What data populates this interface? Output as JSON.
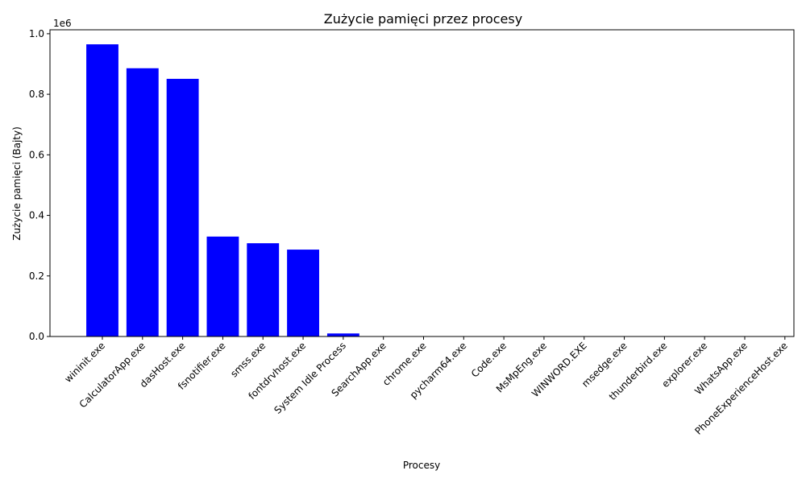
{
  "chart_data": {
    "type": "bar",
    "title": "Zużycie pamięci przez procesy",
    "x_label": "Procesy",
    "y_label": "Zużycie pamięci (Bajty)",
    "y_offset_text": "1e6",
    "categories": [
      "wininit.exe",
      "CalculatorApp.exe",
      "dasHost.exe",
      "fsnotifier.exe",
      "smss.exe",
      "fontdrvhost.exe",
      "System Idle Process",
      "SearchApp.exe",
      "chrome.exe",
      "pycharm64.exe",
      "Code.exe",
      "MsMpEng.exe",
      "WINWORD.EXE",
      "msedge.exe",
      "thunderbird.exe",
      "explorer.exe",
      "WhatsApp.exe",
      "PhoneExperienceHost.exe"
    ],
    "values": [
      965000,
      886000,
      851000,
      330000,
      308000,
      287000,
      10000,
      0,
      0,
      0,
      0,
      0,
      0,
      0,
      0,
      0,
      0,
      0
    ],
    "color": "#0000ff",
    "ylim": [
      0,
      1013000
    ],
    "yticks": [
      {
        "value": 0,
        "label": "0.0"
      },
      {
        "value": 200000,
        "label": "0.2"
      },
      {
        "value": 400000,
        "label": "0.4"
      },
      {
        "value": 600000,
        "label": "0.6"
      },
      {
        "value": 800000,
        "label": "0.8"
      },
      {
        "value": 1000000,
        "label": "1.0"
      }
    ]
  }
}
